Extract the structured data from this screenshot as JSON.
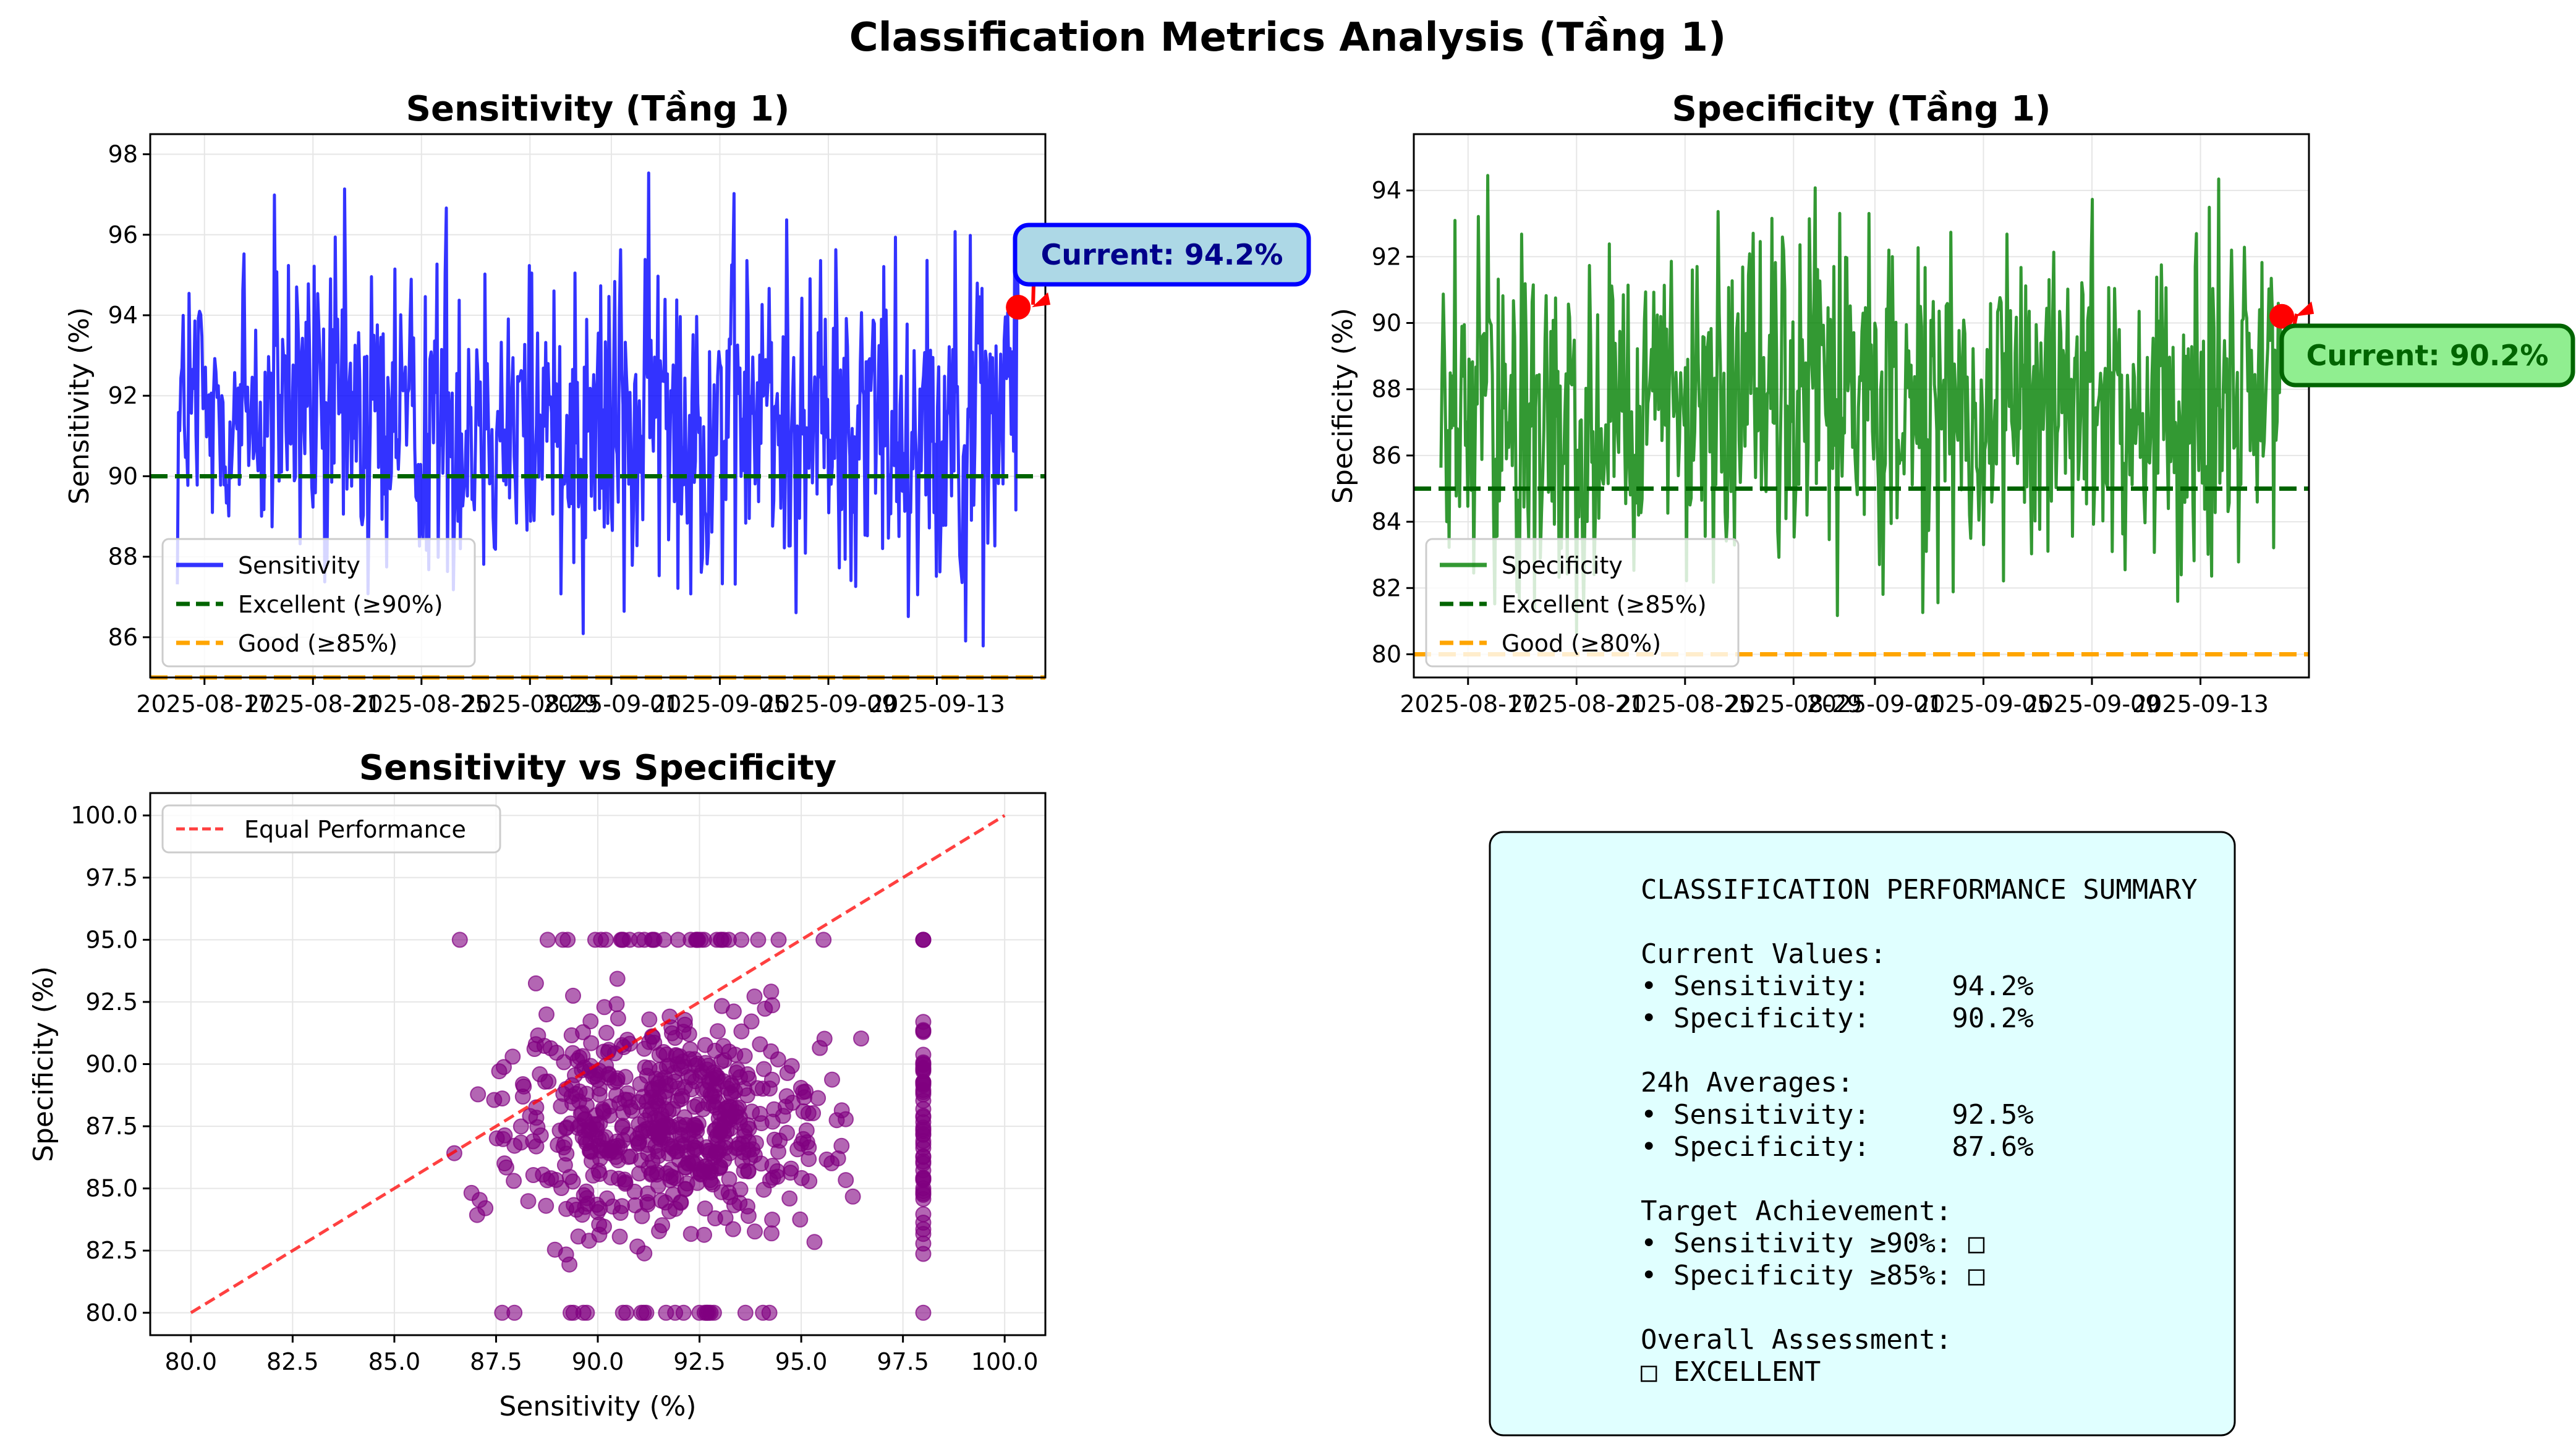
{
  "suptitle": "Classification Metrics Analysis (Tầng 1)",
  "colors": {
    "sensitivity": "#0000ff",
    "specificity": "#008000",
    "excellent": "#006400",
    "good": "#ffa500",
    "marker": "#ff0000",
    "scatter": "#800080",
    "equal_line": "#ff0000",
    "summary_bg": "#e0ffff",
    "sens_box_bg": "#add8e6",
    "sens_box_edge": "#0000ff",
    "sens_box_text": "#00008b",
    "spec_box_bg": "#90ee90",
    "spec_box_edge": "#006400",
    "spec_box_text": "#006400"
  },
  "chart_data": [
    {
      "type": "line",
      "title": "Sensitivity (Tầng 1)",
      "xlabel": "",
      "ylabel": "Sensitivity (%)",
      "x_range": [
        "2025-08-15",
        "2025-09-17"
      ],
      "x_ticks": [
        "2025-08-17",
        "2025-08-21",
        "2025-08-25",
        "2025-08-29",
        "2025-09-01",
        "2025-09-05",
        "2025-09-09",
        "2025-09-13"
      ],
      "ylim": [
        85,
        98.5
      ],
      "yticks": [
        86,
        88,
        90,
        92,
        94,
        96,
        98
      ],
      "grid": true,
      "legend_position": "lower-left",
      "legend": [
        "Sensitivity",
        "Excellent (≥90%)",
        "Good (≥85%)"
      ],
      "series": [
        {
          "name": "Sensitivity",
          "x_start": "2025-08-16",
          "x_end": "2025-09-16",
          "min": 85,
          "max": 98,
          "last": 94.2
        }
      ],
      "thresholds": [
        {
          "name": "Excellent (≥90%)",
          "value": 90
        },
        {
          "name": "Good (≥85%)",
          "value": 85
        }
      ],
      "annotation": {
        "text": "Current: 94.2%",
        "value": 94.2
      }
    },
    {
      "type": "line",
      "title": "Specificity (Tầng 1)",
      "xlabel": "",
      "ylabel": "Specificity (%)",
      "x_range": [
        "2025-08-15",
        "2025-09-17"
      ],
      "x_ticks": [
        "2025-08-17",
        "2025-08-21",
        "2025-08-25",
        "2025-08-29",
        "2025-09-01",
        "2025-09-05",
        "2025-09-09",
        "2025-09-13"
      ],
      "ylim": [
        79.3,
        95.7
      ],
      "yticks": [
        80,
        82,
        84,
        86,
        88,
        90,
        92,
        94
      ],
      "grid": true,
      "legend_position": "lower-left",
      "legend": [
        "Specificity",
        "Excellent (≥85%)",
        "Good (≥80%)"
      ],
      "series": [
        {
          "name": "Specificity",
          "x_start": "2025-08-16",
          "x_end": "2025-09-16",
          "min": 80,
          "max": 95,
          "last": 90.2
        }
      ],
      "thresholds": [
        {
          "name": "Excellent (≥85%)",
          "value": 85
        },
        {
          "name": "Good (≥80%)",
          "value": 80
        }
      ],
      "annotation": {
        "text": "Current: 90.2%",
        "value": 90.2
      }
    },
    {
      "type": "scatter",
      "title": "Sensitivity vs Specificity",
      "xlabel": "Sensitivity (%)",
      "ylabel": "Specificity (%)",
      "xlim": [
        79,
        101
      ],
      "ylim": [
        79.1,
        100.9
      ],
      "xticks": [
        "80.0",
        "82.5",
        "85.0",
        "87.5",
        "90.0",
        "92.5",
        "95.0",
        "97.5",
        "100.0"
      ],
      "yticks": [
        "80.0",
        "82.5",
        "85.0",
        "87.5",
        "90.0",
        "92.5",
        "95.0",
        "97.5",
        "100.0"
      ],
      "grid": true,
      "legend_position": "top-left",
      "legend": [
        "Equal Performance"
      ],
      "reference_line": {
        "name": "Equal Performance",
        "from": [
          80,
          80
        ],
        "to": [
          100,
          100
        ]
      },
      "point_cloud": {
        "x_range": [
          85,
          98
        ],
        "y_range": [
          80,
          95
        ],
        "approx_center": [
          92.5,
          87.6
        ]
      }
    }
  ],
  "summary": {
    "lines": [
      "CLASSIFICATION PERFORMANCE SUMMARY",
      "",
      "Current Values:",
      "• Sensitivity:     94.2%",
      "• Specificity:     90.2%",
      "",
      "24h Averages:",
      "• Sensitivity:     92.5%",
      "• Specificity:     87.6%",
      "",
      "Target Achievement:",
      "• Sensitivity ≥90%: □",
      "• Specificity ≥85%: □",
      "",
      "Overall Assessment:",
      "□ EXCELLENT"
    ]
  }
}
